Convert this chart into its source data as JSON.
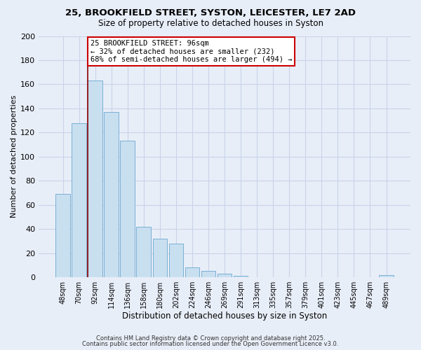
{
  "title1": "25, BROOKFIELD STREET, SYSTON, LEICESTER, LE7 2AD",
  "title2": "Size of property relative to detached houses in Syston",
  "xlabel": "Distribution of detached houses by size in Syston",
  "ylabel": "Number of detached properties",
  "bar_labels": [
    "48sqm",
    "70sqm",
    "92sqm",
    "114sqm",
    "136sqm",
    "158sqm",
    "180sqm",
    "202sqm",
    "224sqm",
    "246sqm",
    "269sqm",
    "291sqm",
    "313sqm",
    "335sqm",
    "357sqm",
    "379sqm",
    "401sqm",
    "423sqm",
    "445sqm",
    "467sqm",
    "489sqm"
  ],
  "bar_values": [
    69,
    128,
    163,
    137,
    113,
    42,
    32,
    28,
    8,
    5,
    3,
    1,
    0,
    0,
    0,
    0,
    0,
    0,
    0,
    0,
    2
  ],
  "bar_color": "#c8dff0",
  "bar_edge_color": "#7ab0d4",
  "vline_x_index": 2,
  "vline_color": "#8b0000",
  "annotation_text": "25 BROOKFIELD STREET: 96sqm\n← 32% of detached houses are smaller (232)\n68% of semi-detached houses are larger (494) →",
  "annotation_box_color": "#ffffff",
  "annotation_box_edge": "#cc0000",
  "ylim": [
    0,
    200
  ],
  "yticks": [
    0,
    20,
    40,
    60,
    80,
    100,
    120,
    140,
    160,
    180,
    200
  ],
  "grid_color": "#c8d4e8",
  "background_color": "#e8eef8",
  "footer1": "Contains HM Land Registry data © Crown copyright and database right 2025.",
  "footer2": "Contains public sector information licensed under the Open Government Licence v3.0."
}
